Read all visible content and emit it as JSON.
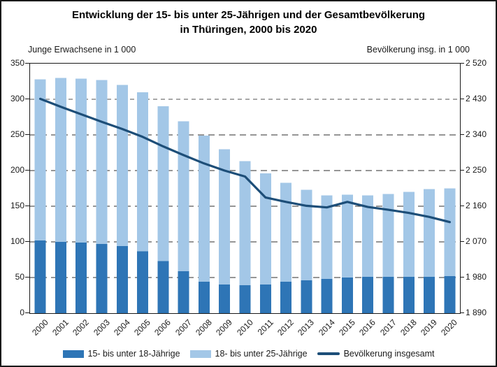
{
  "title": {
    "line1": "Entwicklung der 15- bis unter 25-Jährigen und der Gesamtbevölkerung",
    "line2": "in Thüringen, 2000 bis 2020"
  },
  "colors": {
    "bar_dark_blue": "#2e75b6",
    "bar_light_blue": "#a3c7e7",
    "line_navy": "#1d4e78",
    "grid_dark": "#2e2e2e",
    "grid_highlight_gray": "#a8a8a8",
    "frame_black": "#1a1a1a"
  },
  "chart_data": {
    "type": "bar",
    "stacked": true,
    "title": "Entwicklung der 15- bis unter 25-Jährigen und der Gesamtbevölkerung in Thüringen, 2000 bis 2020",
    "categories": [
      "2000",
      "2001",
      "2002",
      "2003",
      "2004",
      "2005",
      "2006",
      "2007",
      "2008",
      "2009",
      "2010",
      "2011",
      "2012",
      "2013",
      "2014",
      "2015",
      "2016",
      "2017",
      "2018",
      "2019",
      "2020"
    ],
    "series": [
      {
        "name": "15- bis unter 18-Jährige",
        "type": "bar",
        "axis": "left",
        "color": "#2e75b6",
        "values": [
          102,
          100,
          99,
          97,
          94,
          87,
          73,
          59,
          44,
          40,
          39,
          40,
          44,
          46,
          48,
          50,
          51,
          51,
          51,
          51,
          52
        ]
      },
      {
        "name": "18- bis unter 25-Jährige",
        "type": "bar",
        "axis": "left",
        "color": "#a3c7e7",
        "values": [
          226,
          230,
          230,
          230,
          226,
          223,
          217,
          210,
          205,
          190,
          174,
          156,
          139,
          127,
          117,
          116,
          114,
          116,
          119,
          123,
          123
        ]
      },
      {
        "name": "Bevölkerung insgesamt",
        "type": "line",
        "axis": "right",
        "color": "#1d4e78",
        "values": [
          2431,
          2411,
          2392,
          2373,
          2355,
          2335,
          2311,
          2289,
          2268,
          2250,
          2235,
          2182,
          2171,
          2161,
          2157,
          2171,
          2158,
          2151,
          2143,
          2133,
          2120
        ]
      }
    ],
    "left_axis": {
      "label": "Junge Erwachsene in 1 000",
      "min": 0,
      "max": 350,
      "tick_step": 50,
      "tick_labels": [
        "0",
        "50",
        "100",
        "150",
        "200",
        "250",
        "300",
        "350"
      ]
    },
    "right_axis": {
      "label": "Bevölkerung insg. in 1 000",
      "min": 1890,
      "max": 2520,
      "tick_step": 90,
      "tick_labels": [
        "1 890",
        "1 980",
        "2 070",
        "2 160",
        "2 250",
        "2 340",
        "2 430",
        "2 520"
      ]
    },
    "grid": "dashed horizontal at every left-axis step; the 300 / 2 430 line is gray, others dark",
    "legend_position": "bottom-center"
  }
}
